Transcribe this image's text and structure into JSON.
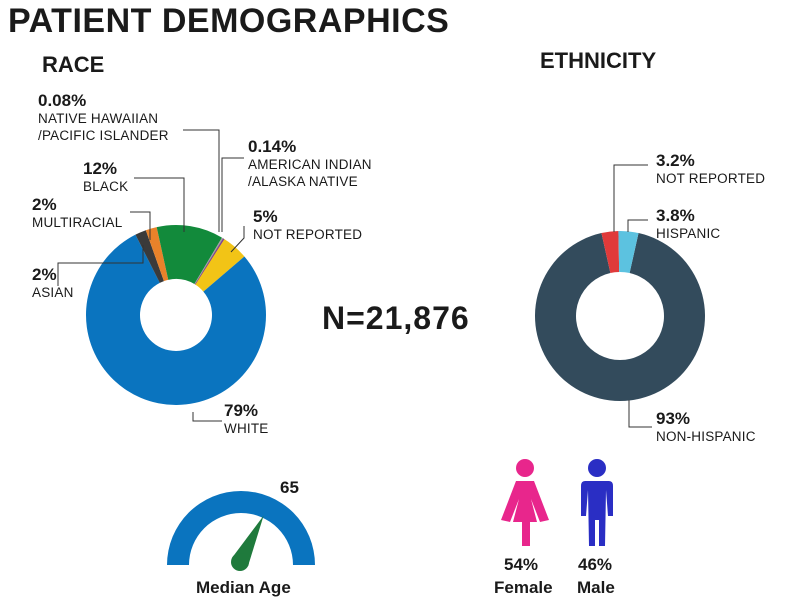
{
  "title": "PATIENT DEMOGRAPHICS",
  "colors": {
    "white": "#0a74bf",
    "black": "#128a3b",
    "multiracial": "#e8822a",
    "asian": "#3a3a3a",
    "not_reported_race": "#f2c416",
    "american_indian": "#7a3e9d",
    "native_hawaiian": "#a0a0a0",
    "non_hispanic": "#334b5c",
    "not_reported_eth": "#e03a3a",
    "hispanic": "#5cc2e0",
    "female": "#e8268c",
    "male": "#2a2ec4",
    "gauge": "#0a74bf",
    "needle": "#1f7a3c"
  },
  "n_label": "N=21,876",
  "median_age": {
    "value": "65",
    "label": "Median Age"
  },
  "gender": {
    "female": {
      "pct": "54%",
      "label": "Female",
      "icon": "female-figure-icon"
    },
    "male": {
      "pct": "46%",
      "label": "Male",
      "icon": "male-figure-icon"
    }
  },
  "chart_data": [
    {
      "type": "pie",
      "title": "RACE",
      "donut": true,
      "slices": [
        {
          "name": "WHITE",
          "value": 79,
          "pct_label": "79%"
        },
        {
          "name": "ASIAN",
          "value": 2,
          "pct_label": "2%"
        },
        {
          "name": "MULTIRACIAL",
          "value": 2,
          "pct_label": "2%"
        },
        {
          "name": "BLACK",
          "value": 12,
          "pct_label": "12%"
        },
        {
          "name": "NATIVE HAWAIIAN /PACIFIC ISLANDER",
          "line1": "NATIVE HAWAIIAN",
          "line2": "/PACIFIC ISLANDER",
          "value": 0.08,
          "pct_label": "0.08%"
        },
        {
          "name": "AMERICAN INDIAN /ALASKA NATIVE",
          "line1": "AMERICAN INDIAN",
          "line2": "/ALASKA NATIVE",
          "value": 0.14,
          "pct_label": "0.14%"
        },
        {
          "name": "NOT REPORTED",
          "value": 5,
          "pct_label": "5%"
        }
      ]
    },
    {
      "type": "pie",
      "title": "ETHNICITY",
      "donut": true,
      "slices": [
        {
          "name": "NON-HISPANIC",
          "value": 93,
          "pct_label": "93%"
        },
        {
          "name": "NOT REPORTED",
          "value": 3.2,
          "pct_label": "3.2%"
        },
        {
          "name": "HISPANIC",
          "value": 3.8,
          "pct_label": "3.8%"
        }
      ]
    },
    {
      "type": "gauge",
      "title": "Median Age",
      "value": 65
    }
  ]
}
